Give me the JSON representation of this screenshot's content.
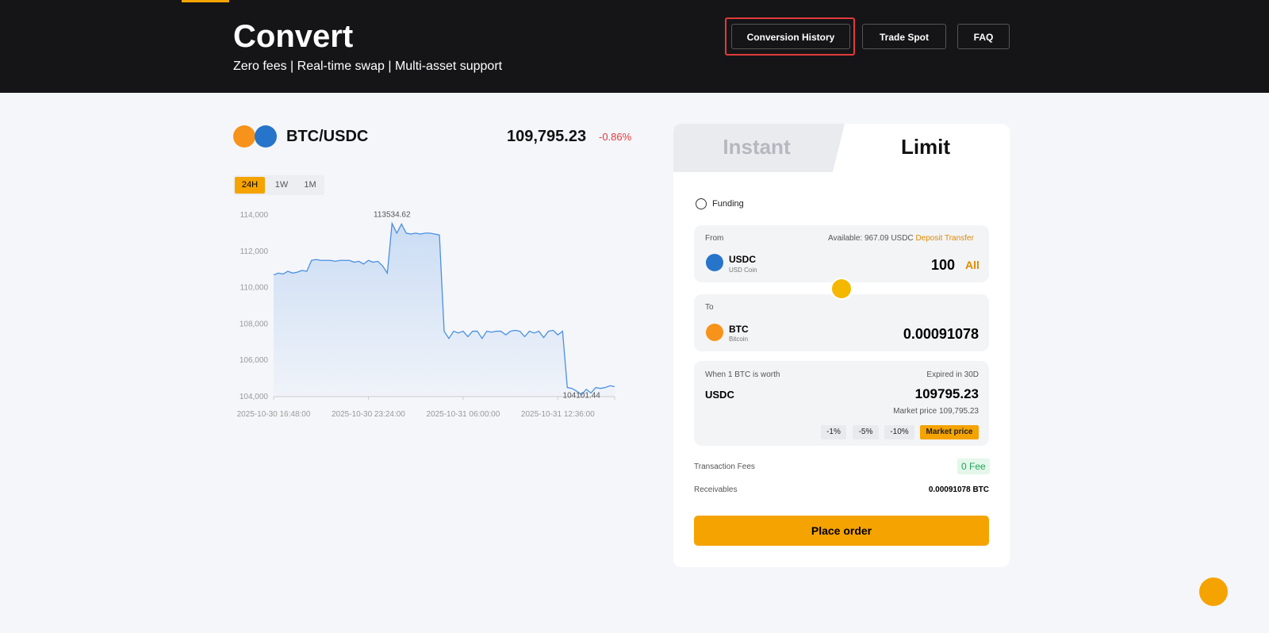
{
  "header": {
    "title": "Convert",
    "subtitle": "Zero fees | Real-time swap | Multi-asset support",
    "buttons": [
      "Conversion History",
      "Trade Spot",
      "FAQ"
    ]
  },
  "pair": {
    "name": "BTC/USDC",
    "price": "109,795.23",
    "change": "-0.86%"
  },
  "ranges": [
    "24H",
    "1W",
    "1M"
  ],
  "chart_data": {
    "type": "line",
    "color": "#4a90e2",
    "categories": [
      "2025-10-30 16:48:00",
      null,
      null,
      null,
      null,
      null,
      null,
      null,
      null,
      null,
      null,
      null,
      null,
      null,
      null,
      null,
      null,
      null,
      null,
      null,
      "2025-10-30 23:24:00",
      null,
      null,
      null,
      null,
      null,
      null,
      null,
      null,
      null,
      null,
      null,
      null,
      null,
      null,
      null,
      null,
      null,
      null,
      null,
      "2025-10-31 06:00:00",
      null,
      null,
      null,
      null,
      null,
      null,
      null,
      null,
      null,
      null,
      null,
      null,
      null,
      null,
      null,
      null,
      null,
      null,
      null,
      "2025-10-31 12:36:00",
      null,
      null,
      null,
      null,
      null,
      null,
      null,
      null,
      null,
      null,
      null,
      null
    ],
    "values": [
      110700,
      110800,
      110750,
      110900,
      110800,
      110850,
      110950,
      110900,
      111500,
      111550,
      111500,
      111500,
      111500,
      111450,
      111500,
      111500,
      111500,
      111400,
      111450,
      111300,
      111500,
      111400,
      111450,
      111200,
      110800,
      113534.62,
      113000,
      113500,
      113000,
      112950,
      113000,
      112950,
      113000,
      113000,
      112950,
      112900,
      107600,
      107200,
      107600,
      107500,
      107600,
      107300,
      107600,
      107600,
      107200,
      107600,
      107550,
      107600,
      107600,
      107400,
      107600,
      107650,
      107600,
      107300,
      107600,
      107500,
      107600,
      107250,
      107600,
      107650,
      107400,
      107600,
      104500,
      104450,
      104300,
      104101.44,
      104400,
      104200,
      104500,
      104450,
      104500,
      104600,
      104550
    ],
    "value_labels": [
      null,
      null,
      null,
      null,
      null,
      null,
      null,
      null,
      null,
      null,
      null,
      null,
      null,
      null,
      null,
      null,
      null,
      null,
      null,
      null,
      null,
      null,
      null,
      null,
      null,
      "113534.62",
      null,
      null,
      null,
      null,
      null,
      null,
      null,
      null,
      null,
      null,
      null,
      null,
      null,
      null,
      null,
      null,
      null,
      null,
      null,
      null,
      null,
      null,
      null,
      null,
      null,
      null,
      null,
      null,
      null,
      null,
      null,
      null,
      null,
      null,
      null,
      null,
      null,
      null,
      null,
      "104101.44",
      null,
      null,
      null,
      null,
      null,
      null,
      null
    ],
    "ylim": [
      104000,
      114000
    ],
    "yticks": [
      {
        "value": 104000,
        "label": "104,000"
      },
      {
        "value": 106000,
        "label": "106,000"
      },
      {
        "value": 108000,
        "label": "108,000"
      },
      {
        "value": 110000,
        "label": "110,000"
      },
      {
        "value": 112000,
        "label": "112,000"
      },
      {
        "value": 114000,
        "label": "114,000"
      }
    ]
  },
  "tabs": [
    "Instant",
    "Limit"
  ],
  "funding": "Funding",
  "from": {
    "label": "From",
    "available": "Available: 967.09 USDC",
    "links": [
      "Deposit",
      "Transfer"
    ],
    "asset": "USDC",
    "asset_name": "USD Coin",
    "amount": "100",
    "all": "All"
  },
  "to": {
    "label": "To",
    "asset": "BTC",
    "asset_name": "Bitcoin",
    "amount": "0.00091078"
  },
  "rate": {
    "label": "When 1 BTC is worth",
    "expiry": "Expired in 30D",
    "asset": "USDC",
    "price": "109795.23",
    "market": "Market price 109,795.23",
    "presets": [
      "-1%",
      "-5%",
      "-10%",
      "Market price"
    ]
  },
  "fees": {
    "label": "Transaction Fees",
    "value": "0 Fee"
  },
  "receivables": {
    "label": "Receivables",
    "value": "0.00091078 BTC"
  },
  "submit": "Place order"
}
